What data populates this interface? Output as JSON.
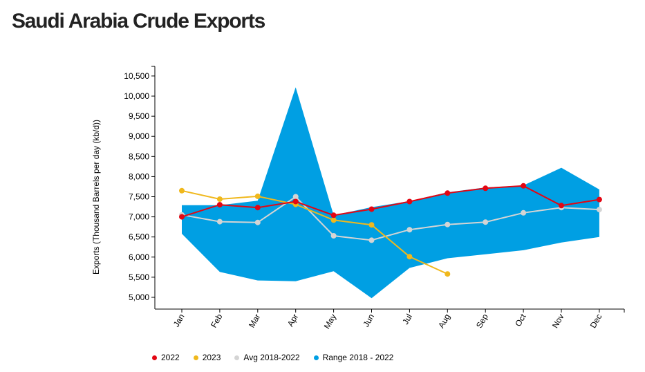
{
  "title": "Saudi Arabia Crude Exports",
  "chart_data": {
    "type": "line",
    "title": "Saudi Arabia Crude Exports",
    "xlabel": "",
    "ylabel": "Exports (Thousand Barrels per day (kb/d))",
    "categories": [
      "Jan",
      "Feb",
      "Mar",
      "Apr",
      "May",
      "Jun",
      "Jul",
      "Aug",
      "Sep",
      "Oct",
      "Nov",
      "Dec"
    ],
    "ylim": [
      4750,
      10750
    ],
    "yticks": [
      5000,
      5500,
      6000,
      6500,
      7000,
      7500,
      8000,
      8500,
      9000,
      9500,
      10000,
      10500
    ],
    "ytick_labels": [
      "5,000",
      "5,500",
      "6,000",
      "6,500",
      "7,000",
      "7,500",
      "8,000",
      "8,500",
      "9,000",
      "9,500",
      "10,000",
      "10,500"
    ],
    "grid": false,
    "legend_position": "bottom",
    "range": {
      "name": "Range 2018 - 2022",
      "color": "#009fe3",
      "low": [
        6580,
        5630,
        5420,
        5400,
        5650,
        4980,
        5730,
        5970,
        6070,
        6170,
        6360,
        6500
      ],
      "high": [
        7290,
        7290,
        7400,
        10220,
        7040,
        7240,
        7390,
        7610,
        7730,
        7780,
        8220,
        7680
      ]
    },
    "series": [
      {
        "name": "2022",
        "color": "#e30613",
        "values": [
          7000,
          7300,
          7230,
          7380,
          7040,
          7190,
          7380,
          7590,
          7710,
          7770,
          7280,
          7430
        ]
      },
      {
        "name": "2023",
        "color": "#f0b81c",
        "values": [
          7650,
          7440,
          7510,
          7310,
          6920,
          6800,
          6010,
          5580,
          null,
          null,
          null,
          null
        ]
      },
      {
        "name": "Avg 2018-2022",
        "color": "#d4d4d4",
        "values": [
          7050,
          6880,
          6860,
          7500,
          6530,
          6420,
          6680,
          6810,
          6870,
          7100,
          7230,
          7180
        ]
      }
    ]
  }
}
